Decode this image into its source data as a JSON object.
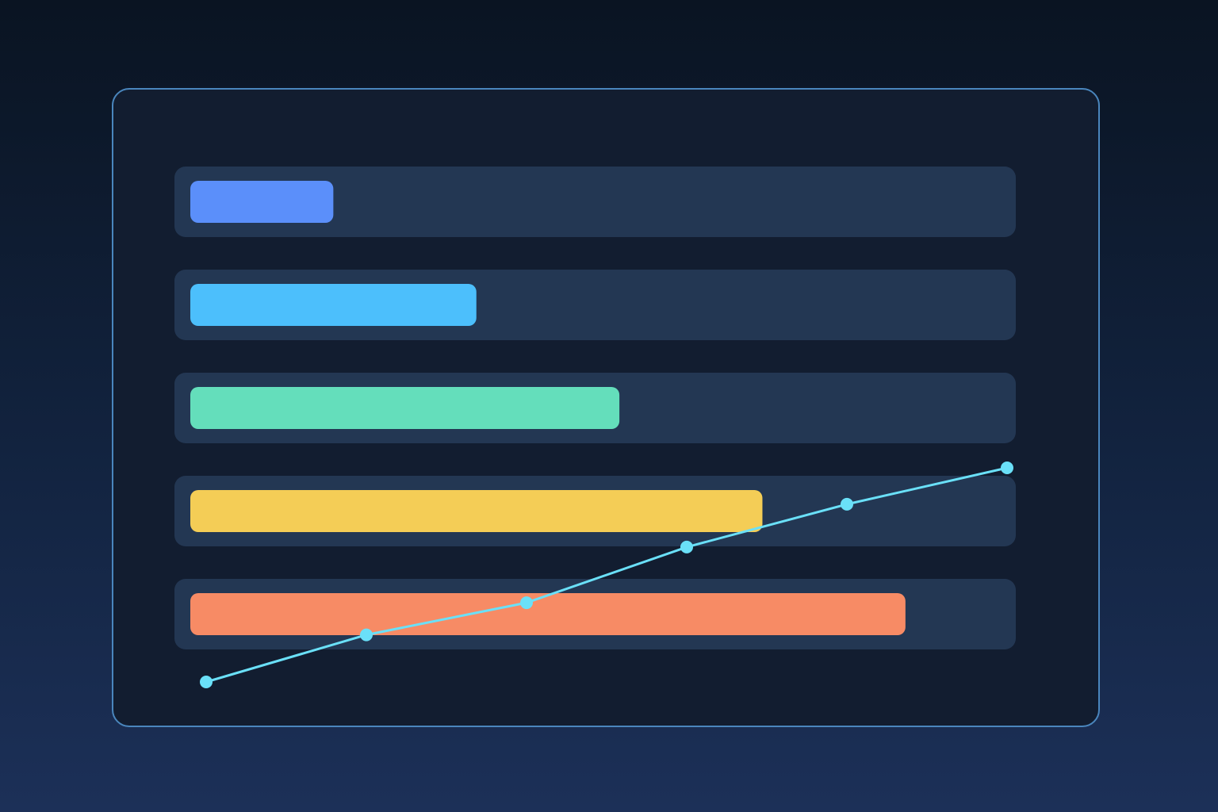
{
  "chart_data": {
    "type": "bar",
    "title": "",
    "xlabel": "",
    "ylabel": "",
    "orientation": "horizontal",
    "grid": false,
    "legend": "none",
    "bar_max": 100,
    "bars": [
      {
        "value": 17,
        "color": "#5b8ffa"
      },
      {
        "value": 34,
        "color": "#4cbffc"
      },
      {
        "value": 51,
        "color": "#64debb"
      },
      {
        "value": 68,
        "color": "#f4cd56"
      },
      {
        "value": 85,
        "color": "#f78b65"
      }
    ],
    "track_color": "#233753",
    "line_series": {
      "color": "#6ae0f8",
      "x": [
        0,
        1,
        2,
        3,
        4,
        5
      ],
      "values": [
        0,
        22,
        37,
        63,
        83,
        100
      ],
      "ylim": [
        0,
        100
      ]
    }
  }
}
